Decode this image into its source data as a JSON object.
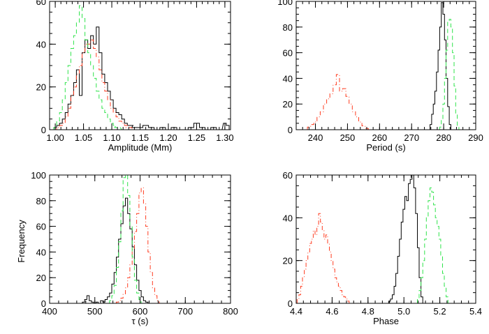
{
  "figure": {
    "ylabel": "Frequency"
  },
  "chart_data": [
    {
      "type": "histogram",
      "xlabel": "Amplitude (Mm)",
      "ylabel": "",
      "xlim": [
        0.99,
        1.31
      ],
      "ylim": [
        0,
        60
      ],
      "xticks": [
        "1.00",
        "1.05",
        "1.10",
        "1.15",
        "1.20",
        "1.25",
        "1.30"
      ],
      "xtick_values": [
        1.0,
        1.05,
        1.1,
        1.15,
        1.2,
        1.25,
        1.3
      ],
      "yticks": [
        "0",
        "20",
        "40",
        "60"
      ],
      "ytick_values": [
        0,
        20,
        40,
        60
      ],
      "series": [
        {
          "color": "#000000",
          "dash": "solid",
          "x": [
            1.0,
            1.005,
            1.01,
            1.015,
            1.02,
            1.025,
            1.03,
            1.035,
            1.04,
            1.045,
            1.05,
            1.055,
            1.06,
            1.065,
            1.07,
            1.075,
            1.08,
            1.085,
            1.09,
            1.095,
            1.1,
            1.105,
            1.11,
            1.115,
            1.12,
            1.125,
            1.13,
            1.135,
            1.14,
            1.15,
            1.16,
            1.17,
            1.18,
            1.19,
            1.2,
            1.21,
            1.22,
            1.23,
            1.24,
            1.25,
            1.26,
            1.27,
            1.28,
            1.29,
            1.3,
            1.305
          ],
          "values": [
            1,
            2,
            3,
            5,
            8,
            12,
            16,
            22,
            28,
            16,
            36,
            42,
            38,
            44,
            40,
            48,
            36,
            26,
            22,
            18,
            14,
            10,
            8,
            7,
            5,
            3,
            2,
            2,
            1,
            1,
            2,
            1,
            0,
            1,
            0,
            1,
            0,
            0,
            1,
            3,
            1,
            0,
            1,
            0,
            3,
            2
          ]
        },
        {
          "color": "#ff3b1f",
          "dash": "6,3,1,3",
          "x": [
            1.0,
            1.005,
            1.01,
            1.015,
            1.02,
            1.025,
            1.03,
            1.035,
            1.04,
            1.045,
            1.05,
            1.055,
            1.06,
            1.065,
            1.07,
            1.075,
            1.08,
            1.085,
            1.09,
            1.095,
            1.1,
            1.105,
            1.11,
            1.115,
            1.12,
            1.125,
            1.13,
            1.14
          ],
          "values": [
            0,
            1,
            2,
            3,
            6,
            10,
            16,
            20,
            26,
            30,
            36,
            40,
            40,
            42,
            38,
            34,
            28,
            22,
            18,
            14,
            10,
            8,
            6,
            4,
            3,
            2,
            1,
            0
          ]
        },
        {
          "color": "#2ee34a",
          "dash": "6,4",
          "x": [
            1.0,
            1.005,
            1.01,
            1.015,
            1.02,
            1.025,
            1.03,
            1.035,
            1.04,
            1.045,
            1.05,
            1.055,
            1.06,
            1.065,
            1.07,
            1.075,
            1.08,
            1.085,
            1.09,
            1.095,
            1.1,
            1.105,
            1.11,
            1.12
          ],
          "values": [
            1,
            4,
            8,
            14,
            22,
            30,
            38,
            44,
            50,
            58,
            52,
            42,
            36,
            30,
            24,
            18,
            14,
            10,
            8,
            5,
            3,
            2,
            1,
            0
          ]
        }
      ]
    },
    {
      "type": "histogram",
      "xlabel": "Period (s)",
      "ylabel": "",
      "xlim": [
        234,
        290
      ],
      "ylim": [
        0,
        100
      ],
      "xticks": [
        "240",
        "250",
        "260",
        "270",
        "280",
        "290"
      ],
      "xtick_values": [
        240,
        250,
        260,
        270,
        280,
        290
      ],
      "yticks": [
        "0",
        "20",
        "40",
        "60",
        "80",
        "100"
      ],
      "ytick_values": [
        0,
        20,
        40,
        60,
        80,
        100
      ],
      "series": [
        {
          "color": "#000000",
          "dash": "solid",
          "x": [
            276,
            276.5,
            277,
            277.5,
            278,
            278.5,
            279,
            279.5,
            280,
            280.5,
            281,
            281.5,
            282
          ],
          "values": [
            4,
            12,
            20,
            30,
            45,
            62,
            80,
            99,
            90,
            70,
            40,
            18,
            4
          ]
        },
        {
          "color": "#ff3b1f",
          "dash": "6,3,1,3",
          "x": [
            238,
            239,
            240,
            241,
            242,
            243,
            244,
            245,
            246,
            247,
            248,
            249,
            250,
            251,
            252,
            253,
            254,
            255,
            256
          ],
          "values": [
            2,
            4,
            6,
            10,
            14,
            20,
            24,
            28,
            35,
            43,
            30,
            32,
            26,
            20,
            14,
            10,
            6,
            3,
            1
          ]
        },
        {
          "color": "#2ee34a",
          "dash": "6,4",
          "x": [
            279,
            279.5,
            280,
            280.5,
            281,
            281.5,
            282,
            282.5,
            283,
            283.5,
            284,
            284.5
          ],
          "values": [
            2,
            8,
            20,
            40,
            62,
            85,
            86,
            80,
            60,
            34,
            12,
            3
          ]
        }
      ]
    },
    {
      "type": "histogram",
      "xlabel": "τ (s)",
      "ylabel": "",
      "xlim": [
        400,
        800
      ],
      "ylim": [
        0,
        100
      ],
      "xticks": [
        "400",
        "500",
        "600",
        "700",
        "800"
      ],
      "xtick_values": [
        400,
        500,
        600,
        700,
        800
      ],
      "yticks": [
        "0",
        "20",
        "40",
        "60",
        "80",
        "100"
      ],
      "ytick_values": [
        0,
        20,
        40,
        60,
        80,
        100
      ],
      "series": [
        {
          "color": "#000000",
          "dash": "solid",
          "x": [
            475,
            480,
            485,
            490,
            495,
            500,
            505,
            510,
            515,
            520,
            525,
            530,
            535,
            540,
            545,
            550,
            555,
            560,
            565,
            570,
            575,
            580,
            585,
            590,
            595,
            600,
            605,
            610,
            615,
            620
          ],
          "values": [
            1,
            3,
            6,
            2,
            1,
            0,
            1,
            0,
            2,
            1,
            3,
            5,
            8,
            15,
            24,
            36,
            50,
            62,
            76,
            82,
            70,
            58,
            44,
            30,
            18,
            10,
            5,
            2,
            1,
            0
          ]
        },
        {
          "color": "#ff3b1f",
          "dash": "6,3,1,3",
          "x": [
            550,
            555,
            560,
            565,
            570,
            575,
            580,
            585,
            590,
            595,
            600,
            605,
            610,
            615,
            620,
            625,
            630,
            635,
            640,
            645
          ],
          "values": [
            1,
            2,
            4,
            7,
            12,
            20,
            30,
            42,
            56,
            70,
            86,
            90,
            78,
            60,
            40,
            24,
            12,
            6,
            2,
            0
          ]
        },
        {
          "color": "#2ee34a",
          "dash": "6,4",
          "x": [
            535,
            540,
            545,
            550,
            555,
            560,
            565,
            570,
            575,
            580,
            585,
            590,
            595,
            600,
            605
          ],
          "values": [
            2,
            6,
            14,
            28,
            48,
            72,
            98,
            100,
            84,
            60,
            36,
            18,
            8,
            3,
            0
          ]
        }
      ]
    },
    {
      "type": "histogram",
      "xlabel": "Phase",
      "ylabel": "",
      "xlim": [
        4.4,
        5.4
      ],
      "ylim": [
        0,
        60
      ],
      "xticks": [
        "4.4",
        "4.6",
        "4.8",
        "5.0",
        "5.2",
        "5.4"
      ],
      "xtick_values": [
        4.4,
        4.6,
        4.8,
        5.0,
        5.2,
        5.4
      ],
      "yticks": [
        "0",
        "20",
        "40",
        "60"
      ],
      "ytick_values": [
        0,
        20,
        40,
        60
      ],
      "series": [
        {
          "color": "#000000",
          "dash": "solid",
          "x": [
            4.92,
            4.93,
            4.94,
            4.95,
            4.96,
            4.97,
            4.98,
            4.99,
            5.0,
            5.01,
            5.02,
            5.03,
            5.04,
            5.05,
            5.06,
            5.07,
            5.08,
            5.09,
            5.1
          ],
          "values": [
            1,
            2,
            4,
            8,
            14,
            22,
            30,
            38,
            44,
            50,
            48,
            56,
            58,
            60,
            54,
            42,
            26,
            12,
            3
          ]
        },
        {
          "color": "#ff3b1f",
          "dash": "6,3,1,3",
          "x": [
            4.41,
            4.42,
            4.43,
            4.44,
            4.45,
            4.46,
            4.47,
            4.48,
            4.49,
            4.5,
            4.51,
            4.52,
            4.53,
            4.54,
            4.55,
            4.56,
            4.57,
            4.58,
            4.59,
            4.6,
            4.61,
            4.62,
            4.63,
            4.64,
            4.65,
            4.66,
            4.67,
            4.68,
            4.69,
            4.7
          ],
          "values": [
            2,
            4,
            8,
            12,
            16,
            20,
            24,
            28,
            30,
            34,
            32,
            36,
            42,
            38,
            34,
            30,
            32,
            28,
            24,
            20,
            16,
            12,
            10,
            8,
            6,
            4,
            3,
            2,
            1,
            0
          ]
        },
        {
          "color": "#2ee34a",
          "dash": "6,4",
          "x": [
            5.08,
            5.09,
            5.1,
            5.11,
            5.12,
            5.13,
            5.14,
            5.15,
            5.16,
            5.17,
            5.18,
            5.19,
            5.2,
            5.21,
            5.22,
            5.23,
            5.24,
            5.25
          ],
          "values": [
            2,
            6,
            12,
            20,
            30,
            40,
            48,
            54,
            52,
            46,
            40,
            36,
            30,
            22,
            14,
            8,
            3,
            0
          ]
        }
      ]
    }
  ]
}
